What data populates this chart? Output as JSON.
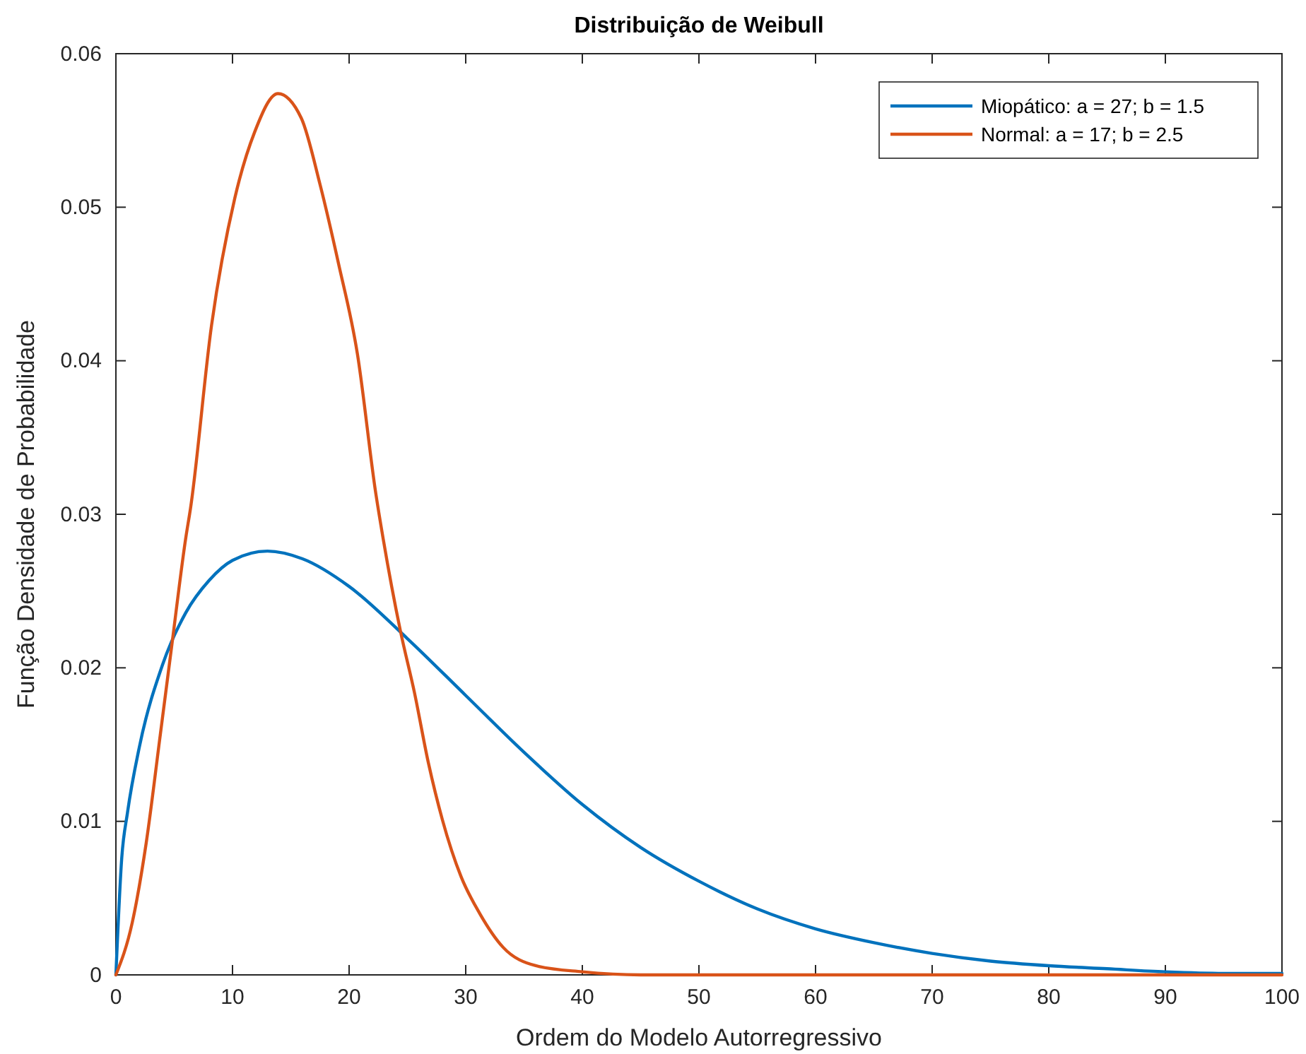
{
  "chart_data": {
    "type": "line",
    "title": "Distribuição de Weibull",
    "xlabel": "Ordem do Modelo Autorregressivo",
    "ylabel": "Função Densidade de Probabilidade",
    "xlim": [
      0,
      100
    ],
    "xticks": [
      0,
      10,
      20,
      30,
      40,
      50,
      60,
      70,
      80,
      90,
      100
    ],
    "ylim": [
      0,
      0.06
    ],
    "yticks": [
      0,
      0.01,
      0.02,
      0.03,
      0.04,
      0.05,
      0.06
    ],
    "grid": false,
    "legend": "top right",
    "marker": "none",
    "line_style": "solid",
    "series": [
      {
        "name": "Miopático: a = 27; b = 1.5",
        "color": "#0072bd",
        "x": [
          0,
          0.5,
          1,
          2,
          4,
          6,
          8,
          10,
          13,
          16,
          20,
          25,
          30,
          35,
          40,
          45,
          50,
          55,
          60,
          65,
          70,
          75,
          80,
          85,
          90,
          95,
          100
        ],
        "values": [
          0,
          0.0076,
          0.0106,
          0.0148,
          0.0202,
          0.0236,
          0.0257,
          0.027,
          0.0276,
          0.0271,
          0.0253,
          0.0219,
          0.0182,
          0.0145,
          0.0111,
          0.0083,
          0.0061,
          0.0043,
          0.003,
          0.0021,
          0.0014,
          0.0009,
          0.0006,
          0.0004,
          0.0002,
          0.0001,
          0.0001
        ]
      },
      {
        "name": "Normal: a = 17; b = 2.5",
        "color": "#d95319",
        "x": [
          0,
          1.4,
          2.6,
          3.8,
          4.8,
          6,
          6.4,
          8.2,
          10.2,
          11.9,
          13.9,
          15.9,
          17.5,
          19.1,
          20.7,
          22.3,
          22.9,
          24.4,
          25.6,
          26.8,
          28,
          29.6,
          31.2,
          33.2,
          36,
          40,
          45,
          50,
          60,
          70,
          80,
          90,
          100
        ],
        "values": [
          0,
          0.0034,
          0.0086,
          0.0156,
          0.0215,
          0.0285,
          0.0304,
          0.0423,
          0.0506,
          0.0549,
          0.0574,
          0.0558,
          0.0515,
          0.0463,
          0.0405,
          0.0313,
          0.0285,
          0.0224,
          0.0184,
          0.0138,
          0.0101,
          0.0064,
          0.004,
          0.0018,
          0.0006,
          0.0002,
          0,
          0,
          0,
          0,
          0,
          0,
          0
        ]
      }
    ]
  }
}
